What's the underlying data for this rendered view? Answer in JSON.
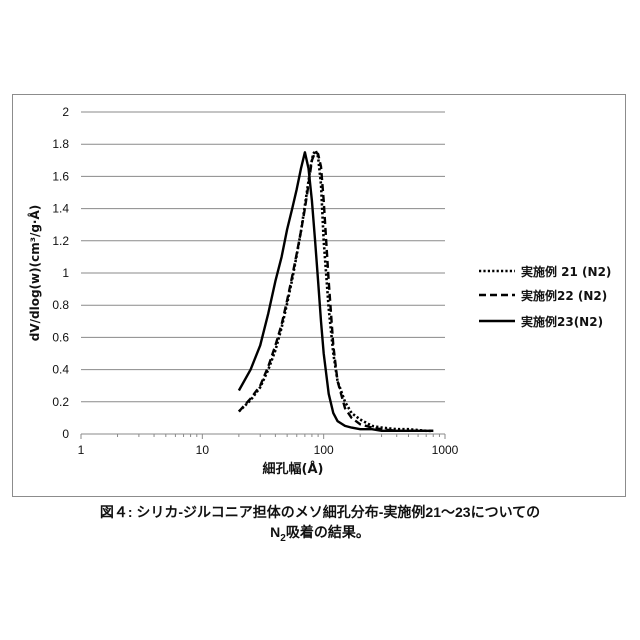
{
  "chart_data": {
    "type": "line",
    "xscale": "log",
    "xlim": [
      1,
      1000
    ],
    "ylim": [
      0,
      2
    ],
    "x_ticks": [
      "1",
      "10",
      "100",
      "1000"
    ],
    "y_ticks": [
      "0",
      "0.2",
      "0.4",
      "0.6",
      "0.8",
      "1",
      "1.2",
      "1.4",
      "1.6",
      "1.8",
      "2"
    ],
    "xlabel": "細孔幅(Å)",
    "ylabel": "dV/dlog(w)(cm³/g·Å)",
    "grid": "horizontal",
    "legend_position": "right",
    "series": [
      {
        "name": "実施例 21 (N2)",
        "style": "dotted",
        "x": [
          20,
          25,
          30,
          35,
          40,
          45,
          50,
          55,
          60,
          65,
          70,
          75,
          78,
          82,
          86,
          90,
          95,
          100,
          110,
          120,
          130,
          150,
          170,
          200,
          250,
          300,
          400,
          500,
          700,
          800
        ],
        "y": [
          0.14,
          0.21,
          0.29,
          0.4,
          0.52,
          0.66,
          0.81,
          0.96,
          1.11,
          1.26,
          1.42,
          1.57,
          1.66,
          1.74,
          1.76,
          1.72,
          1.55,
          1.2,
          0.78,
          0.5,
          0.33,
          0.2,
          0.13,
          0.09,
          0.05,
          0.04,
          0.03,
          0.03,
          0.02,
          0.02
        ]
      },
      {
        "name": "実施例22 (N2)",
        "style": "dashed",
        "x": [
          20,
          25,
          30,
          35,
          40,
          45,
          50,
          55,
          60,
          65,
          70,
          75,
          80,
          85,
          90,
          95,
          100,
          110,
          120,
          130,
          150,
          170,
          200,
          250,
          300,
          400,
          500,
          700,
          800
        ],
        "y": [
          0.14,
          0.22,
          0.3,
          0.42,
          0.55,
          0.68,
          0.83,
          0.98,
          1.12,
          1.26,
          1.4,
          1.55,
          1.7,
          1.75,
          1.74,
          1.66,
          1.45,
          0.95,
          0.55,
          0.33,
          0.16,
          0.1,
          0.06,
          0.04,
          0.03,
          0.02,
          0.02,
          0.02,
          0.02
        ]
      },
      {
        "name": "実施例23(N2)",
        "style": "solid",
        "x": [
          20,
          25,
          30,
          35,
          40,
          45,
          50,
          55,
          60,
          65,
          70,
          75,
          80,
          85,
          90,
          95,
          100,
          110,
          120,
          130,
          150,
          170,
          200,
          250,
          300,
          400,
          500,
          700,
          800
        ],
        "y": [
          0.27,
          0.4,
          0.55,
          0.75,
          0.95,
          1.1,
          1.27,
          1.4,
          1.52,
          1.65,
          1.75,
          1.65,
          1.45,
          1.2,
          0.95,
          0.7,
          0.5,
          0.25,
          0.13,
          0.08,
          0.05,
          0.04,
          0.03,
          0.03,
          0.02,
          0.02,
          0.02,
          0.02,
          0.02
        ]
      }
    ]
  },
  "caption": {
    "line1": "図４: シリカ-ジルコニア担体のメソ細孔分布-実施例21～23についての",
    "line2_n": "N",
    "line2_sub": "2",
    "line2_rest": "吸着の結果。"
  }
}
